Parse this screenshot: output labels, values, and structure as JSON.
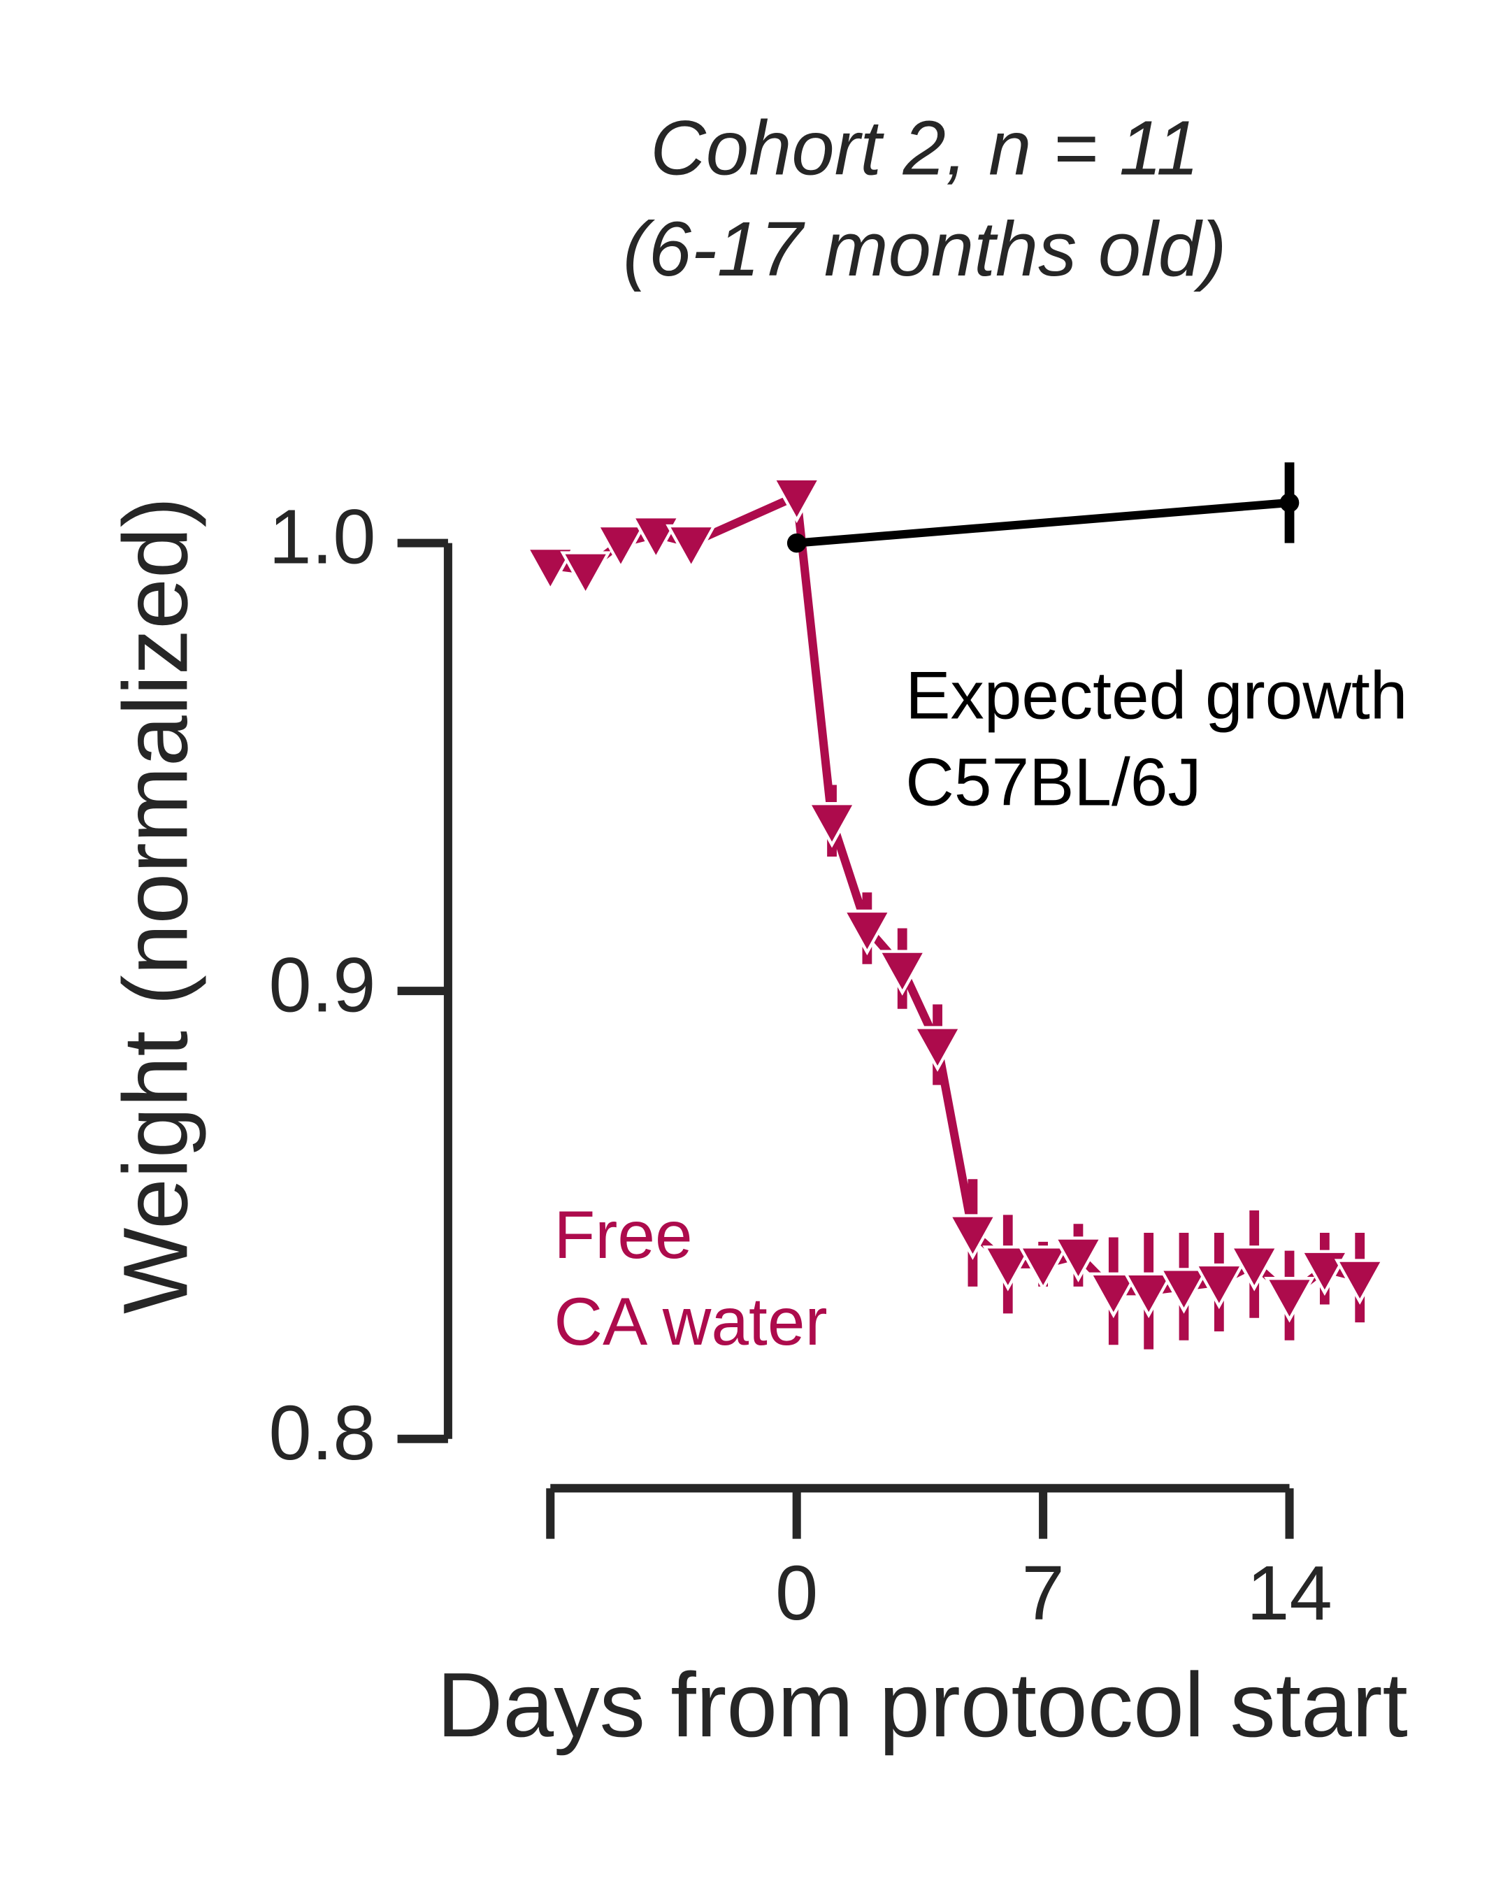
{
  "chart_data": {
    "type": "line",
    "title": "Cohort 2, n = 11",
    "subtitle": "(6-17 months old)",
    "x_label": "Days from protocol start",
    "y_label": "Weight (normalized)",
    "xlim": [
      -7,
      14
    ],
    "xticks": [
      0,
      7,
      14
    ],
    "ylim": [
      0.8,
      1.0
    ],
    "yticks": [
      {
        "value": 0.8,
        "label": "0.8"
      },
      {
        "value": 0.9,
        "label": "0.9"
      },
      {
        "value": 1.0,
        "label": "1.0"
      }
    ],
    "series": [
      {
        "color": "#ad0b4c",
        "marker": "triangle-down",
        "x": [
          -7,
          -6,
          -5,
          -4,
          -3,
          0,
          1,
          2,
          3,
          4,
          5,
          6,
          7,
          8,
          9,
          10,
          11,
          12,
          13,
          14,
          15,
          16
        ],
        "values": [
          0.995,
          0.994,
          1.0,
          1.002,
          1.0,
          1.0105,
          0.938,
          0.914,
          0.905,
          0.888,
          0.846,
          0.839,
          0.839,
          0.841,
          0.833,
          0.833,
          0.834,
          0.835,
          0.839,
          0.832,
          0.838,
          0.836
        ],
        "errors": [
          0.004,
          0.002,
          0.002,
          0.002,
          0.002,
          0.002,
          0.008,
          0.008,
          0.009,
          0.009,
          0.012,
          0.011,
          0.005,
          0.007,
          0.012,
          0.013,
          0.012,
          0.011,
          0.012,
          0.01,
          0.008,
          0.01
        ]
      },
      {
        "color": "#000000",
        "marker": "circle",
        "x": [
          0,
          14
        ],
        "values": [
          1.0,
          1.009
        ],
        "errors": [
          0,
          0.009
        ]
      }
    ],
    "annotations": [
      {
        "lines": [
          "Expected growth",
          "C57BL/6J"
        ],
        "color": "#000000"
      },
      {
        "lines": [
          "Free",
          "CA water"
        ],
        "color": "#ad0b4c"
      }
    ]
  }
}
